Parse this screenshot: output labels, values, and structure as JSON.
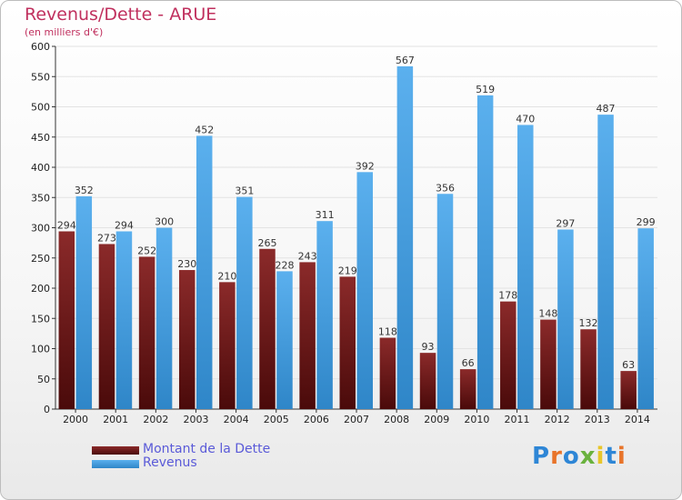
{
  "header": {
    "title": "Revenus/Dette - ARUE",
    "subtitle": "(en milliers d'€)"
  },
  "legend": {
    "items": [
      {
        "label": "Montant de la Dette",
        "color": "#6a1a1a"
      },
      {
        "label": "Revenus",
        "color": "#4ea6e6"
      }
    ]
  },
  "logo": {
    "text": "Proxiti",
    "icon": "proxiti-logo"
  },
  "colors": {
    "dette_top": "#8b2a2a",
    "dette_bottom": "#4a0a0a",
    "revenus_top": "#5bb0ee",
    "revenus_bottom": "#2f86c8",
    "title": "#c0305e",
    "legend_text": "#5a5ad8"
  },
  "chart_data": {
    "type": "bar",
    "categories": [
      "2000",
      "2001",
      "2002",
      "2003",
      "2004",
      "2005",
      "2006",
      "2007",
      "2008",
      "2009",
      "2010",
      "2011",
      "2012",
      "2013",
      "2014"
    ],
    "series": [
      {
        "name": "Montant de la Dette",
        "values": [
          294,
          273,
          252,
          230,
          210,
          265,
          243,
          219,
          118,
          93,
          66,
          178,
          148,
          132,
          63
        ]
      },
      {
        "name": "Revenus",
        "values": [
          352,
          294,
          300,
          452,
          351,
          228,
          311,
          392,
          567,
          356,
          519,
          470,
          297,
          487,
          299
        ]
      }
    ],
    "ylim": [
      0,
      600
    ],
    "yticks": [
      0,
      50,
      100,
      150,
      200,
      250,
      300,
      350,
      400,
      450,
      500,
      550,
      600
    ],
    "grid": true,
    "legend_position": "bottom-left"
  }
}
